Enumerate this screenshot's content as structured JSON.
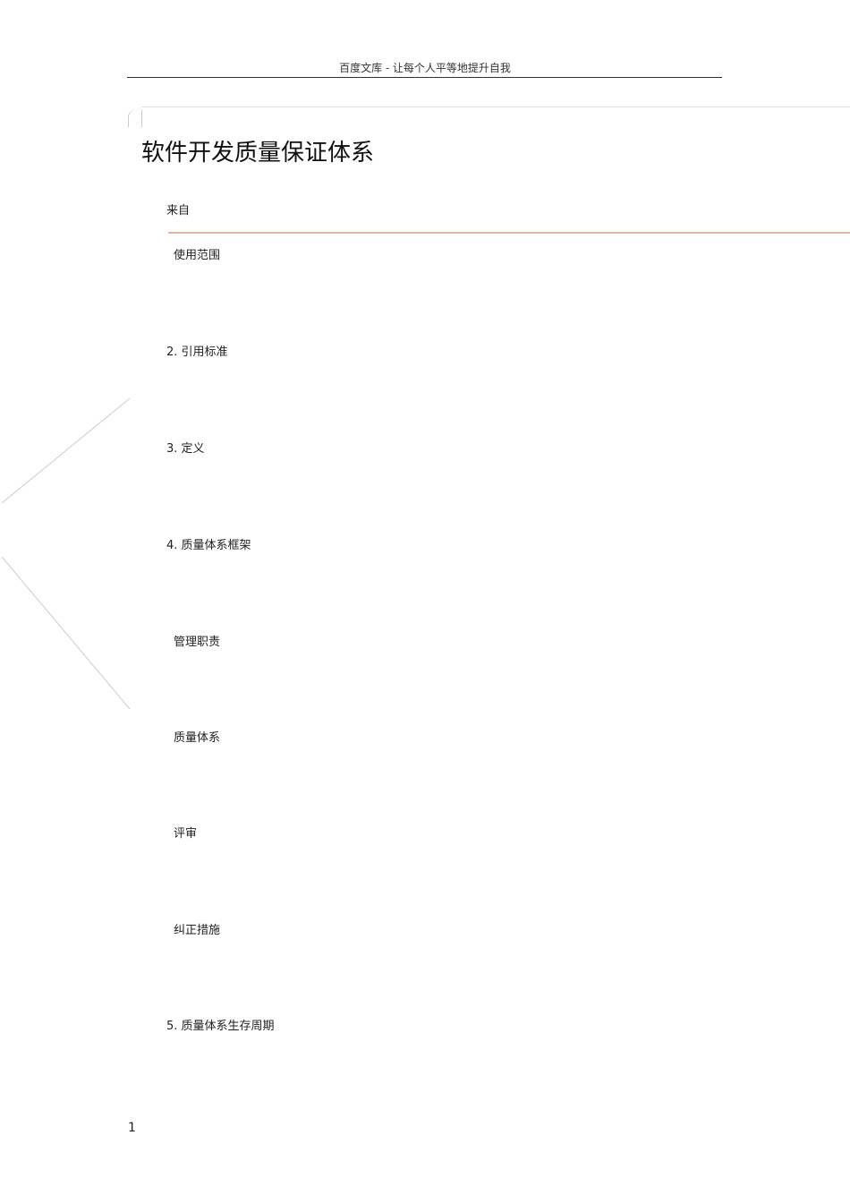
{
  "header": {
    "text": "百度文库  - 让每个人平等地提升自我"
  },
  "title": "软件开发质量保证体系",
  "source_label": "来自",
  "items": [
    "使用范围",
    "2. 引用标准",
    "3. 定义",
    "4. 质量体系框架",
    "管理职责",
    "质量体系",
    "评审",
    "纠正措施",
    "5. 质量体系生存周期"
  ],
  "page_number": "1",
  "colors": {
    "accent_line": "#e8b49e"
  }
}
